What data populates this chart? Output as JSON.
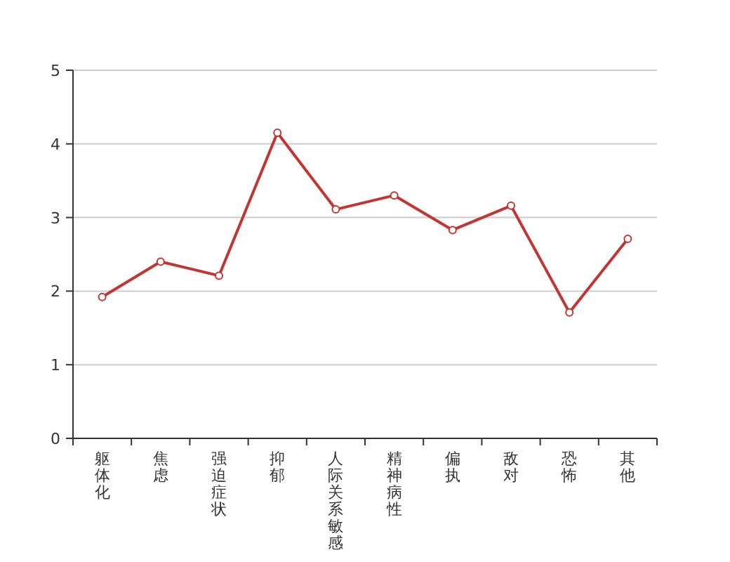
{
  "chart_data": {
    "type": "line",
    "categories": [
      "躯体化",
      "焦虑",
      "强迫症状",
      "抑郁",
      "人际关系敏感",
      "精神病性",
      "偏执",
      "敌对",
      "恐怖",
      "其他"
    ],
    "series": [
      {
        "color": "#c23531",
        "values": [
          1.92,
          2.4,
          2.21,
          4.15,
          3.11,
          3.3,
          2.83,
          3.16,
          1.71,
          2.71
        ]
      }
    ],
    "ylim": [
      0,
      5
    ],
    "yticks": [
      0,
      1,
      2,
      3,
      4,
      5
    ],
    "grid": "y",
    "marker": "circle",
    "line_style": "solid"
  }
}
